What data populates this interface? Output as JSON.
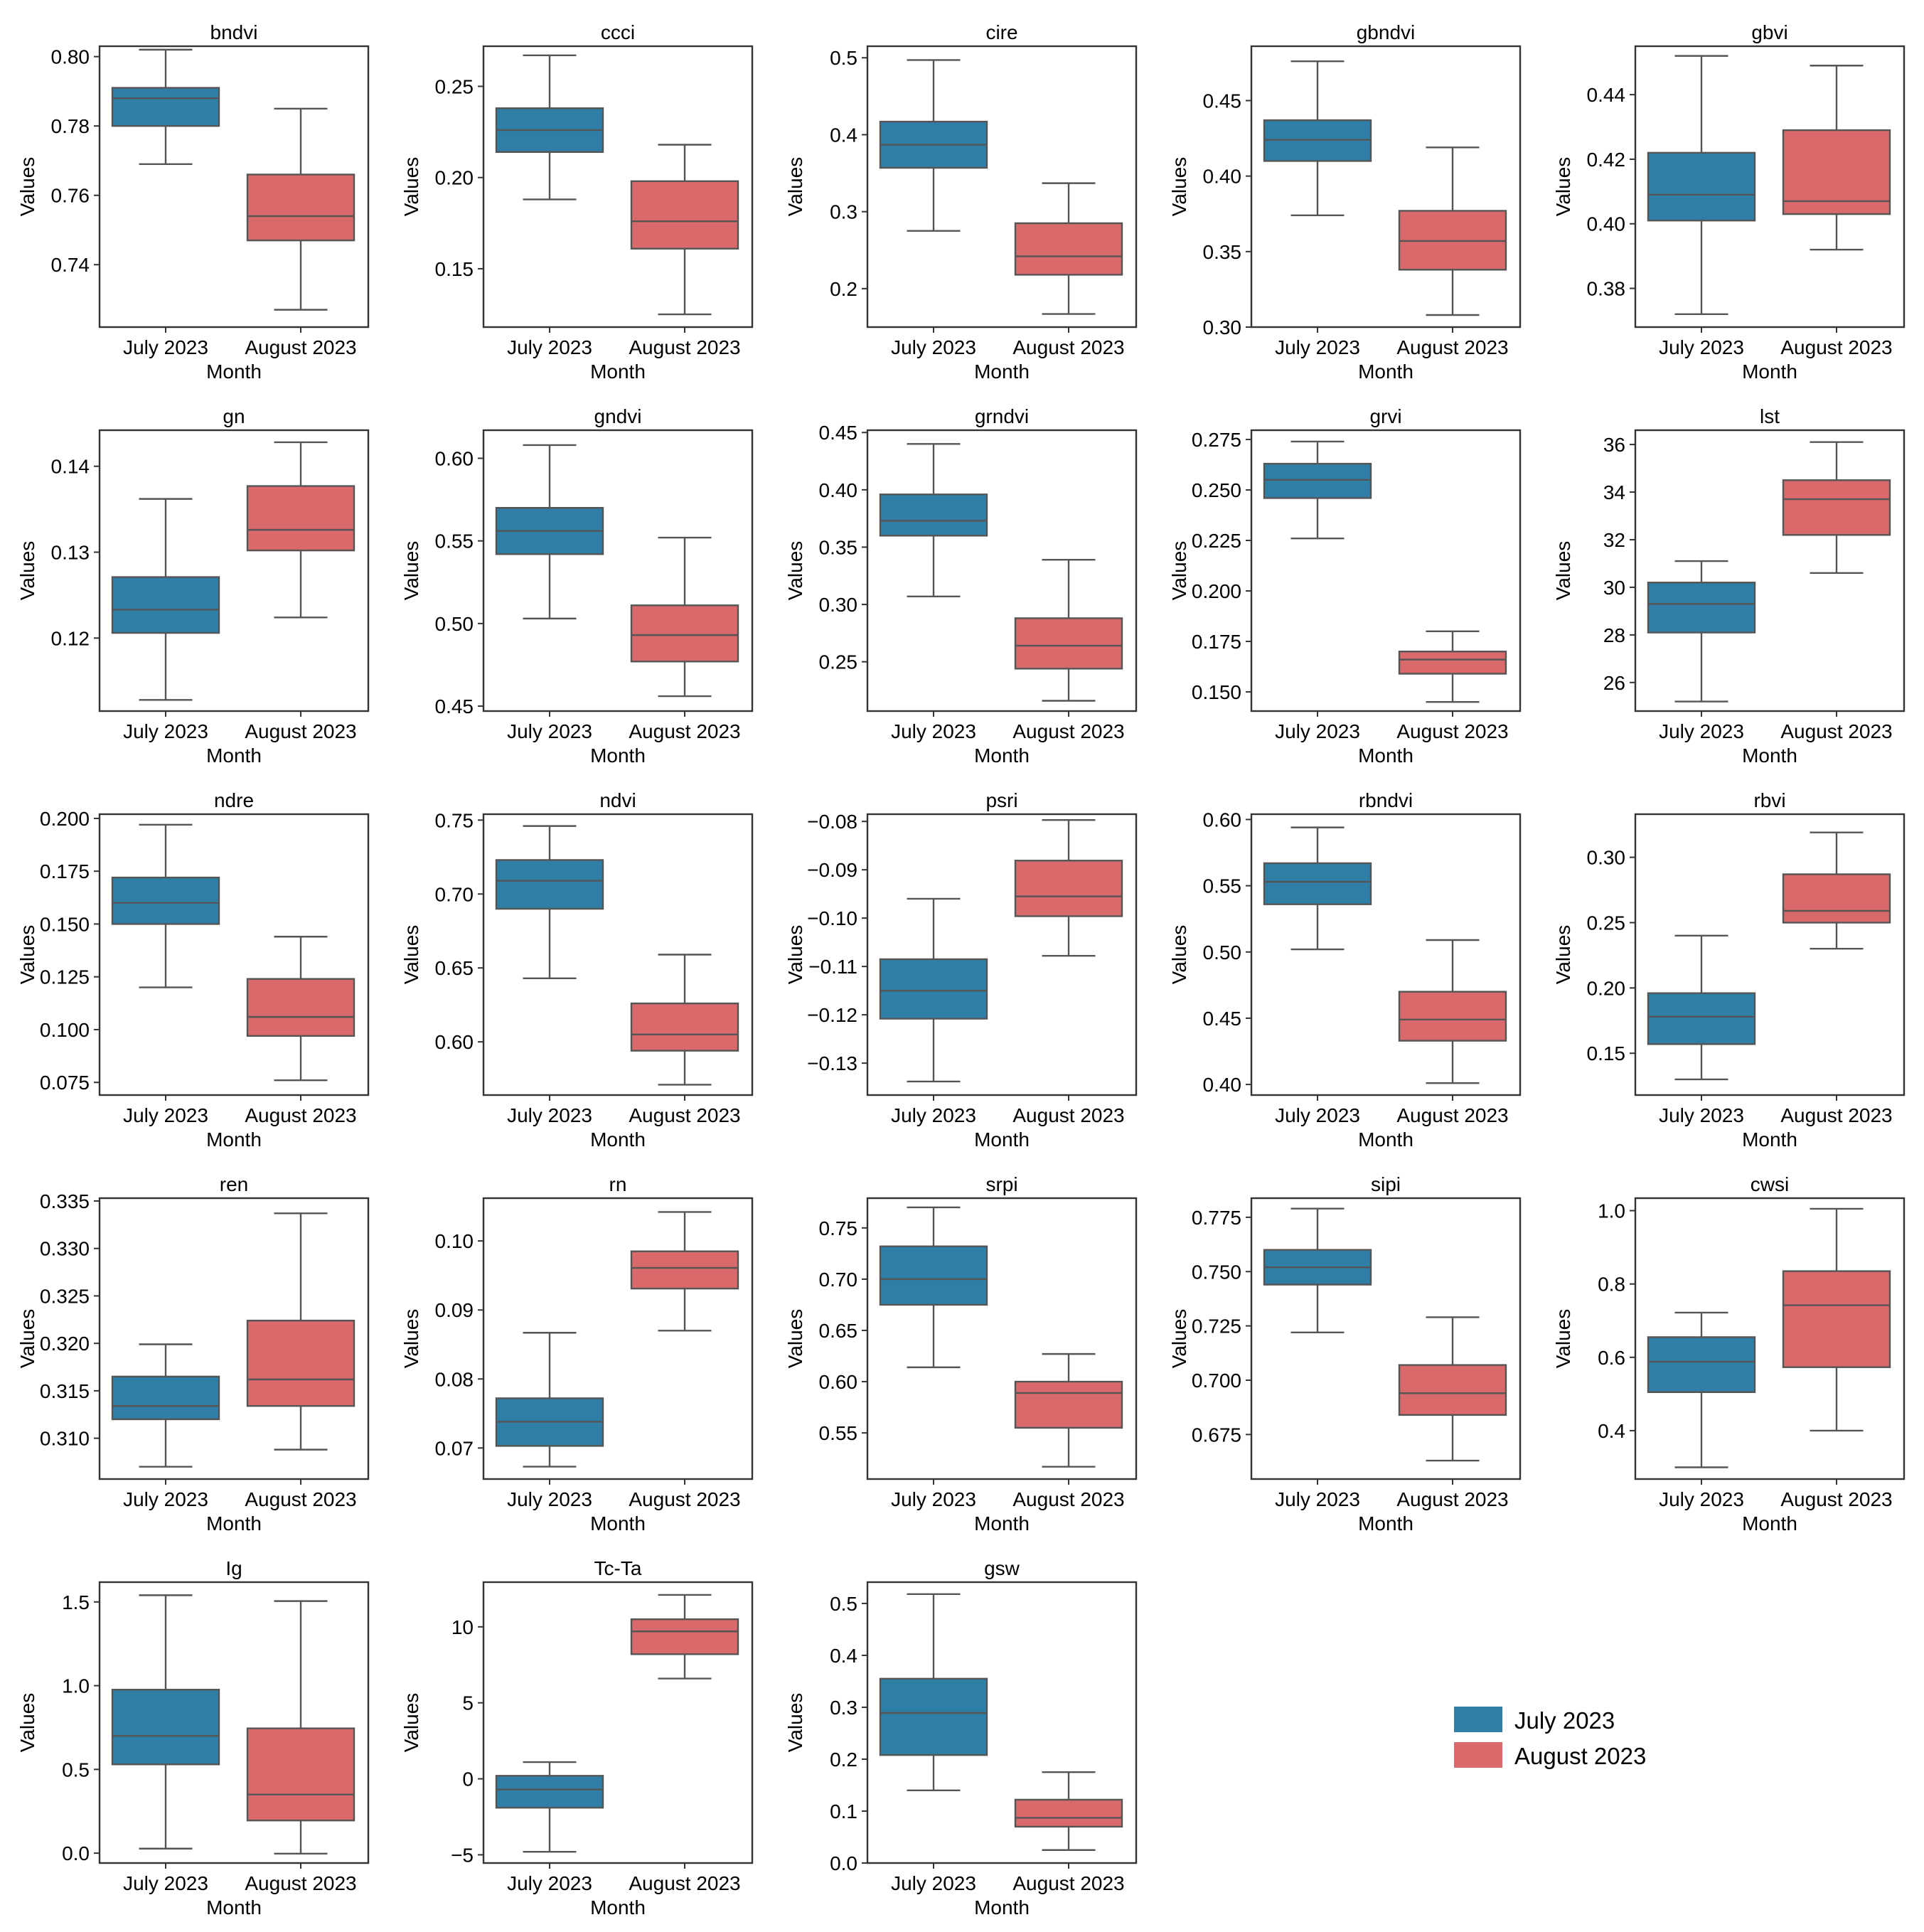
{
  "figure": {
    "xlabel": "Month",
    "ylabel": "Values",
    "categories": [
      "July 2023",
      "August 2023"
    ],
    "colors": {
      "July 2023": "#2e7ea6",
      "August 2023": "#d9696a"
    },
    "legend": {
      "placement": "bottom-right empty cell",
      "entries": [
        "July 2023",
        "August 2023"
      ]
    }
  },
  "chart_data": [
    {
      "type": "box",
      "title": "bndvi",
      "ylim": [
        0.722,
        0.803
      ],
      "yticks": [
        "0.80",
        "0.78",
        "0.76",
        "0.74"
      ],
      "yticks_values": [
        0.8,
        0.78,
        0.76,
        0.74
      ],
      "series": [
        {
          "name": "July 2023",
          "whisker_low": 0.769,
          "q1": 0.78,
          "median": 0.788,
          "q3": 0.791,
          "whisker_high": 0.802
        },
        {
          "name": "August 2023",
          "whisker_low": 0.727,
          "q1": 0.747,
          "median": 0.754,
          "q3": 0.766,
          "whisker_high": 0.785
        }
      ]
    },
    {
      "type": "box",
      "title": "ccci",
      "ylim": [
        0.118,
        0.272
      ],
      "yticks": [
        "0.25",
        "0.20",
        "0.15"
      ],
      "yticks_values": [
        0.25,
        0.2,
        0.15
      ],
      "series": [
        {
          "name": "July 2023",
          "whisker_low": 0.188,
          "q1": 0.214,
          "median": 0.226,
          "q3": 0.238,
          "whisker_high": 0.267
        },
        {
          "name": "August 2023",
          "whisker_low": 0.125,
          "q1": 0.161,
          "median": 0.176,
          "q3": 0.198,
          "whisker_high": 0.218
        }
      ]
    },
    {
      "type": "box",
      "title": "cire",
      "ylim": [
        0.15,
        0.515
      ],
      "yticks": [
        "0.5",
        "0.4",
        "0.3",
        "0.2"
      ],
      "yticks_values": [
        0.5,
        0.4,
        0.3,
        0.2
      ],
      "series": [
        {
          "name": "July 2023",
          "whisker_low": 0.275,
          "q1": 0.357,
          "median": 0.387,
          "q3": 0.417,
          "whisker_high": 0.497
        },
        {
          "name": "August 2023",
          "whisker_low": 0.167,
          "q1": 0.218,
          "median": 0.242,
          "q3": 0.285,
          "whisker_high": 0.337
        }
      ]
    },
    {
      "type": "box",
      "title": "gbndvi",
      "ylim": [
        0.3,
        0.486
      ],
      "yticks": [
        "0.45",
        "0.40",
        "0.35",
        "0.30"
      ],
      "yticks_values": [
        0.45,
        0.4,
        0.35,
        0.3
      ],
      "series": [
        {
          "name": "July 2023",
          "whisker_low": 0.374,
          "q1": 0.41,
          "median": 0.424,
          "q3": 0.437,
          "whisker_high": 0.476
        },
        {
          "name": "August 2023",
          "whisker_low": 0.308,
          "q1": 0.338,
          "median": 0.357,
          "q3": 0.377,
          "whisker_high": 0.419
        }
      ]
    },
    {
      "type": "box",
      "title": "gbvi",
      "ylim": [
        0.368,
        0.455
      ],
      "yticks": [
        "0.44",
        "0.42",
        "0.40",
        "0.38"
      ],
      "yticks_values": [
        0.44,
        0.42,
        0.4,
        0.38
      ],
      "series": [
        {
          "name": "July 2023",
          "whisker_low": 0.372,
          "q1": 0.401,
          "median": 0.409,
          "q3": 0.422,
          "whisker_high": 0.452
        },
        {
          "name": "August 2023",
          "whisker_low": 0.392,
          "q1": 0.403,
          "median": 0.407,
          "q3": 0.429,
          "whisker_high": 0.449
        }
      ]
    },
    {
      "type": "box",
      "title": "gn",
      "ylim": [
        0.1115,
        0.1442
      ],
      "yticks": [
        "0.14",
        "0.13",
        "0.12"
      ],
      "yticks_values": [
        0.14,
        0.13,
        0.12
      ],
      "series": [
        {
          "name": "July 2023",
          "whisker_low": 0.1128,
          "q1": 0.1206,
          "median": 0.1233,
          "q3": 0.1271,
          "whisker_high": 0.1362
        },
        {
          "name": "August 2023",
          "whisker_low": 0.1224,
          "q1": 0.1302,
          "median": 0.1326,
          "q3": 0.1377,
          "whisker_high": 0.1428
        }
      ]
    },
    {
      "type": "box",
      "title": "gndvi",
      "ylim": [
        0.447,
        0.617
      ],
      "yticks": [
        "0.60",
        "0.55",
        "0.50",
        "0.45"
      ],
      "yticks_values": [
        0.6,
        0.55,
        0.5,
        0.45
      ],
      "series": [
        {
          "name": "July 2023",
          "whisker_low": 0.503,
          "q1": 0.542,
          "median": 0.556,
          "q3": 0.57,
          "whisker_high": 0.608
        },
        {
          "name": "August 2023",
          "whisker_low": 0.456,
          "q1": 0.477,
          "median": 0.493,
          "q3": 0.511,
          "whisker_high": 0.552
        }
      ]
    },
    {
      "type": "box",
      "title": "grndvi",
      "ylim": [
        0.207,
        0.452
      ],
      "yticks": [
        "0.45",
        "0.40",
        "0.35",
        "0.30",
        "0.25"
      ],
      "yticks_values": [
        0.45,
        0.4,
        0.35,
        0.3,
        0.25
      ],
      "series": [
        {
          "name": "July 2023",
          "whisker_low": 0.307,
          "q1": 0.36,
          "median": 0.373,
          "q3": 0.396,
          "whisker_high": 0.44
        },
        {
          "name": "August 2023",
          "whisker_low": 0.216,
          "q1": 0.244,
          "median": 0.264,
          "q3": 0.288,
          "whisker_high": 0.339
        }
      ]
    },
    {
      "type": "box",
      "title": "grvi",
      "ylim": [
        0.1405,
        0.2796
      ],
      "yticks": [
        "0.275",
        "0.250",
        "0.225",
        "0.200",
        "0.175",
        "0.150"
      ],
      "yticks_values": [
        0.275,
        0.25,
        0.225,
        0.2,
        0.175,
        0.15
      ],
      "series": [
        {
          "name": "July 2023",
          "whisker_low": 0.226,
          "q1": 0.246,
          "median": 0.255,
          "q3": 0.263,
          "whisker_high": 0.274
        },
        {
          "name": "August 2023",
          "whisker_low": 0.145,
          "q1": 0.159,
          "median": 0.166,
          "q3": 0.17,
          "whisker_high": 0.18
        }
      ]
    },
    {
      "type": "box",
      "title": "lst",
      "ylim": [
        24.8,
        36.6
      ],
      "yticks": [
        "36",
        "34",
        "32",
        "30",
        "28",
        "26"
      ],
      "yticks_values": [
        36,
        34,
        32,
        30,
        28,
        26
      ],
      "series": [
        {
          "name": "July 2023",
          "whisker_low": 25.2,
          "q1": 28.1,
          "median": 29.3,
          "q3": 30.2,
          "whisker_high": 31.1
        },
        {
          "name": "August 2023",
          "whisker_low": 30.6,
          "q1": 32.2,
          "median": 33.7,
          "q3": 34.5,
          "whisker_high": 36.1
        }
      ]
    },
    {
      "type": "box",
      "title": "ndre",
      "ylim": [
        0.069,
        0.202
      ],
      "yticks": [
        "0.200",
        "0.175",
        "0.150",
        "0.125",
        "0.100",
        "0.075"
      ],
      "yticks_values": [
        0.2,
        0.175,
        0.15,
        0.125,
        0.1,
        0.075
      ],
      "series": [
        {
          "name": "July 2023",
          "whisker_low": 0.12,
          "q1": 0.15,
          "median": 0.16,
          "q3": 0.172,
          "whisker_high": 0.197
        },
        {
          "name": "August 2023",
          "whisker_low": 0.076,
          "q1": 0.097,
          "median": 0.106,
          "q3": 0.124,
          "whisker_high": 0.144
        }
      ]
    },
    {
      "type": "box",
      "title": "ndvi",
      "ylim": [
        0.564,
        0.754
      ],
      "yticks": [
        "0.75",
        "0.70",
        "0.65",
        "0.60"
      ],
      "yticks_values": [
        0.75,
        0.7,
        0.65,
        0.6
      ],
      "series": [
        {
          "name": "July 2023",
          "whisker_low": 0.643,
          "q1": 0.69,
          "median": 0.709,
          "q3": 0.723,
          "whisker_high": 0.746
        },
        {
          "name": "August 2023",
          "whisker_low": 0.571,
          "q1": 0.594,
          "median": 0.605,
          "q3": 0.626,
          "whisker_high": 0.659
        }
      ]
    },
    {
      "type": "box",
      "title": "psri",
      "ylim": [
        -0.1366,
        -0.0785
      ],
      "yticks": [
        "−0.08",
        "−0.09",
        "−0.10",
        "−0.11",
        "−0.12",
        "−0.13"
      ],
      "yticks_values": [
        -0.08,
        -0.09,
        -0.1,
        -0.11,
        -0.12,
        -0.13
      ],
      "series": [
        {
          "name": "July 2023",
          "whisker_low": -0.1338,
          "q1": -0.1208,
          "median": -0.115,
          "q3": -0.1085,
          "whisker_high": -0.096
        },
        {
          "name": "August 2023",
          "whisker_low": -0.1078,
          "q1": -0.0996,
          "median": -0.0955,
          "q3": -0.0881,
          "whisker_high": -0.0797
        }
      ]
    },
    {
      "type": "box",
      "title": "rbndvi",
      "ylim": [
        0.392,
        0.604
      ],
      "yticks": [
        "0.60",
        "0.55",
        "0.50",
        "0.45",
        "0.40"
      ],
      "yticks_values": [
        0.6,
        0.55,
        0.5,
        0.45,
        0.4
      ],
      "series": [
        {
          "name": "July 2023",
          "whisker_low": 0.502,
          "q1": 0.536,
          "median": 0.553,
          "q3": 0.567,
          "whisker_high": 0.594
        },
        {
          "name": "August 2023",
          "whisker_low": 0.401,
          "q1": 0.433,
          "median": 0.449,
          "q3": 0.47,
          "whisker_high": 0.509
        }
      ]
    },
    {
      "type": "box",
      "title": "rbvi",
      "ylim": [
        0.118,
        0.333
      ],
      "yticks": [
        "0.30",
        "0.25",
        "0.20",
        "0.15"
      ],
      "yticks_values": [
        0.3,
        0.25,
        0.2,
        0.15
      ],
      "series": [
        {
          "name": "July 2023",
          "whisker_low": 0.13,
          "q1": 0.157,
          "median": 0.178,
          "q3": 0.196,
          "whisker_high": 0.24
        },
        {
          "name": "August 2023",
          "whisker_low": 0.23,
          "q1": 0.25,
          "median": 0.259,
          "q3": 0.287,
          "whisker_high": 0.319
        }
      ]
    },
    {
      "type": "box",
      "title": "ren",
      "ylim": [
        0.3057,
        0.3353
      ],
      "yticks": [
        "0.335",
        "0.330",
        "0.325",
        "0.320",
        "0.315",
        "0.310"
      ],
      "yticks_values": [
        0.335,
        0.33,
        0.325,
        0.32,
        0.315,
        0.31
      ],
      "series": [
        {
          "name": "July 2023",
          "whisker_low": 0.307,
          "q1": 0.312,
          "median": 0.3134,
          "q3": 0.3165,
          "whisker_high": 0.3199
        },
        {
          "name": "August 2023",
          "whisker_low": 0.3088,
          "q1": 0.3134,
          "median": 0.3162,
          "q3": 0.3224,
          "whisker_high": 0.3337
        }
      ]
    },
    {
      "type": "box",
      "title": "rn",
      "ylim": [
        0.0655,
        0.1062
      ],
      "yticks": [
        "0.10",
        "0.09",
        "0.08",
        "0.07"
      ],
      "yticks_values": [
        0.1,
        0.09,
        0.08,
        0.07
      ],
      "series": [
        {
          "name": "July 2023",
          "whisker_low": 0.0673,
          "q1": 0.0703,
          "median": 0.0738,
          "q3": 0.0772,
          "whisker_high": 0.0867
        },
        {
          "name": "August 2023",
          "whisker_low": 0.087,
          "q1": 0.0931,
          "median": 0.0961,
          "q3": 0.0985,
          "whisker_high": 0.1042
        }
      ]
    },
    {
      "type": "box",
      "title": "srpi",
      "ylim": [
        0.505,
        0.779
      ],
      "yticks": [
        "0.75",
        "0.70",
        "0.65",
        "0.60",
        "0.55"
      ],
      "yticks_values": [
        0.75,
        0.7,
        0.65,
        0.6,
        0.55
      ],
      "series": [
        {
          "name": "July 2023",
          "whisker_low": 0.614,
          "q1": 0.675,
          "median": 0.7,
          "q3": 0.732,
          "whisker_high": 0.77
        },
        {
          "name": "August 2023",
          "whisker_low": 0.517,
          "q1": 0.555,
          "median": 0.589,
          "q3": 0.6,
          "whisker_high": 0.627
        }
      ]
    },
    {
      "type": "box",
      "title": "sipi",
      "ylim": [
        0.6545,
        0.7838
      ],
      "yticks": [
        "0.775",
        "0.750",
        "0.725",
        "0.700",
        "0.675"
      ],
      "yticks_values": [
        0.775,
        0.75,
        0.725,
        0.7,
        0.675
      ],
      "series": [
        {
          "name": "July 2023",
          "whisker_low": 0.722,
          "q1": 0.744,
          "median": 0.752,
          "q3": 0.76,
          "whisker_high": 0.779
        },
        {
          "name": "August 2023",
          "whisker_low": 0.663,
          "q1": 0.684,
          "median": 0.694,
          "q3": 0.707,
          "whisker_high": 0.729
        }
      ]
    },
    {
      "type": "box",
      "title": "cwsi",
      "ylim": [
        0.268,
        1.034
      ],
      "yticks": [
        "1.0",
        "0.8",
        "0.6",
        "0.4"
      ],
      "yticks_values": [
        1.0,
        0.8,
        0.6,
        0.4
      ],
      "series": [
        {
          "name": "July 2023",
          "whisker_low": 0.3,
          "q1": 0.505,
          "median": 0.588,
          "q3": 0.655,
          "whisker_high": 0.722
        },
        {
          "name": "August 2023",
          "whisker_low": 0.4,
          "q1": 0.573,
          "median": 0.742,
          "q3": 0.835,
          "whisker_high": 1.005
        }
      ]
    },
    {
      "type": "box",
      "title": "Ig",
      "ylim": [
        -0.059,
        1.618
      ],
      "yticks": [
        "1.5",
        "1.0",
        "0.5",
        "0.0"
      ],
      "yticks_values": [
        1.5,
        1.0,
        0.5,
        0.0
      ],
      "series": [
        {
          "name": "July 2023",
          "whisker_low": 0.027,
          "q1": 0.53,
          "median": 0.7,
          "q3": 0.976,
          "whisker_high": 1.54
        },
        {
          "name": "August 2023",
          "whisker_low": -0.003,
          "q1": 0.195,
          "median": 0.35,
          "q3": 0.745,
          "whisker_high": 1.505
        }
      ]
    },
    {
      "type": "box",
      "title": "Tc-Ta",
      "ylim": [
        -5.54,
        12.94
      ],
      "yticks": [
        "10",
        "5",
        "0",
        "−5"
      ],
      "yticks_values": [
        10,
        5,
        0,
        -5
      ],
      "series": [
        {
          "name": "July 2023",
          "whisker_low": -4.8,
          "q1": -1.9,
          "median": -0.7,
          "q3": 0.2,
          "whisker_high": 1.1
        },
        {
          "name": "August 2023",
          "whisker_low": 6.6,
          "q1": 8.2,
          "median": 9.7,
          "q3": 10.5,
          "whisker_high": 12.1
        }
      ]
    },
    {
      "type": "box",
      "title": "gsw",
      "ylim": [
        0.0,
        0.541
      ],
      "yticks": [
        "0.5",
        "0.4",
        "0.3",
        "0.2",
        "0.1",
        "0.0"
      ],
      "yticks_values": [
        0.5,
        0.4,
        0.3,
        0.2,
        0.1,
        0.0
      ],
      "series": [
        {
          "name": "July 2023",
          "whisker_low": 0.14,
          "q1": 0.208,
          "median": 0.289,
          "q3": 0.355,
          "whisker_high": 0.518
        },
        {
          "name": "August 2023",
          "whisker_low": 0.025,
          "q1": 0.07,
          "median": 0.087,
          "q3": 0.122,
          "whisker_high": 0.175
        }
      ]
    }
  ]
}
